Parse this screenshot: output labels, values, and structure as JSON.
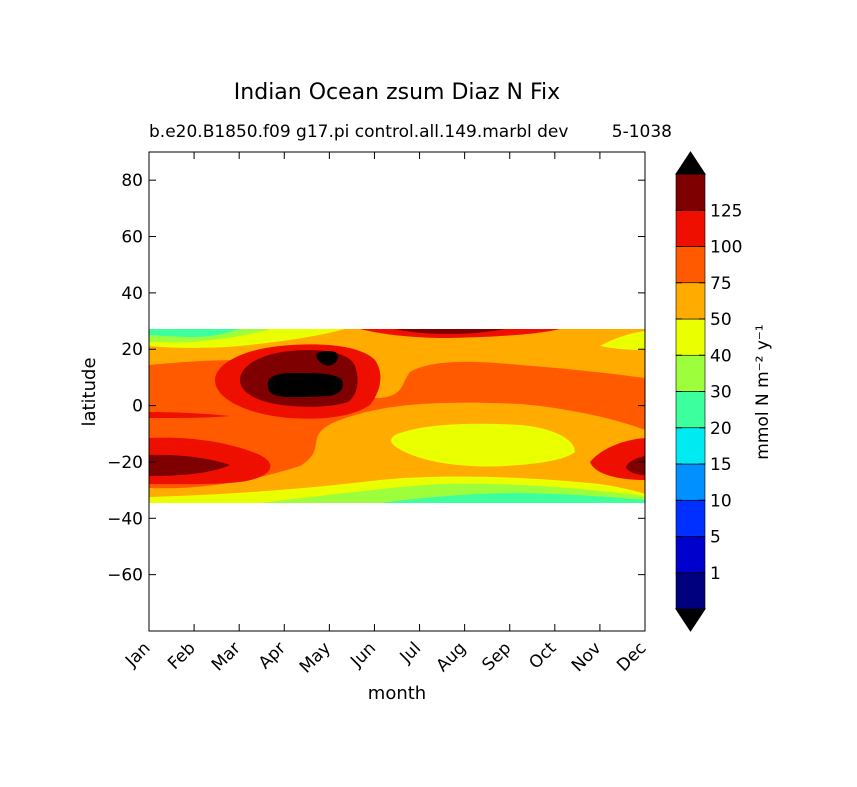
{
  "chart_data": {
    "type": "contourf",
    "title": "Indian Ocean zsum Diaz N Fix",
    "subtitle_left": "b.e20.B1850.f09 g17.pi control.all.149.marbl dev",
    "subtitle_right": "5-1038",
    "xlabel": "month",
    "ylabel": "latitude",
    "x_categories": [
      "Jan",
      "Feb",
      "Mar",
      "Apr",
      "May",
      "Jun",
      "Jul",
      "Aug",
      "Sep",
      "Oct",
      "Nov",
      "Dec"
    ],
    "ylim": [
      -80,
      90
    ],
    "y_ticks": [
      80,
      60,
      40,
      20,
      0,
      -20,
      -40,
      -60
    ],
    "y_tick_labels": [
      "80",
      "60",
      "40",
      "20",
      "0",
      "−20",
      "−40",
      "−60"
    ],
    "data_lat_range": [
      -34,
      27
    ],
    "colorbar": {
      "label": "mmol N m⁻² y⁻¹",
      "tick_labels": [
        "1",
        "5",
        "10",
        "15",
        "20",
        "30",
        "40",
        "50",
        "75",
        "100",
        "125"
      ],
      "levels": [
        1,
        5,
        10,
        15,
        20,
        30,
        40,
        50,
        75,
        100,
        125,
        150
      ],
      "colors": [
        "#00007f",
        "#0000cd",
        "#0030ff",
        "#0090ff",
        "#00eaf2",
        "#3cff9d",
        "#9dff3c",
        "#eaff00",
        "#ffab00",
        "#ff5a00",
        "#ef0f00",
        "#7f0000"
      ],
      "under_color": "#000000",
      "over_color": "#000000",
      "extend": "both"
    },
    "field_description": {
      "value_range_shown": [
        20,
        150
      ],
      "notes": [
        "High values (75-150+) near 20S in Jan-Feb and Dec",
        "Maximum (>150) near 10N in Apr-May",
        "Band of 40-50 near 15S in Jul-Sep",
        "Low values (20-40) at southern edge near 30S-34S"
      ]
    }
  }
}
